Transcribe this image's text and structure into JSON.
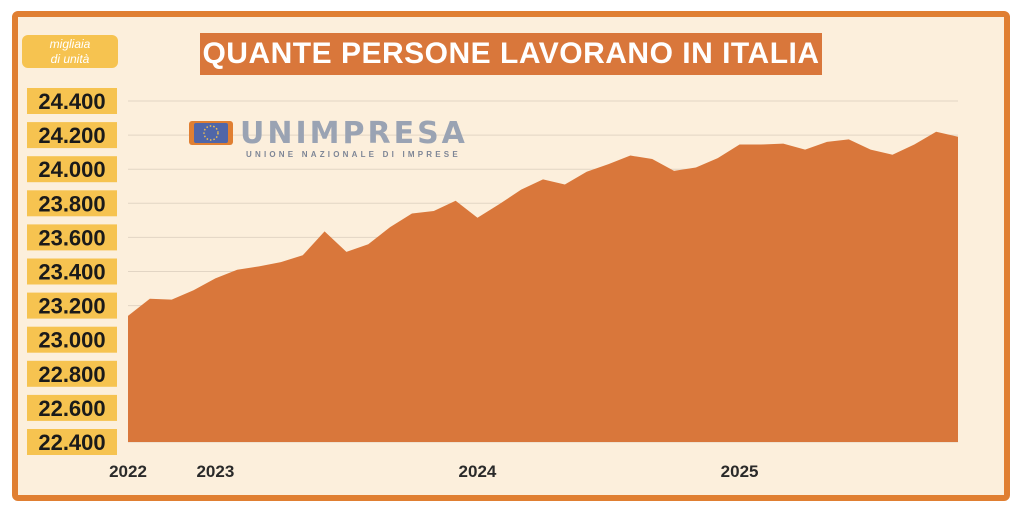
{
  "title": "QUANTE PERSONE LAVORANO IN ITALIA",
  "unit_line1": "migliaia",
  "unit_line2": "di unità",
  "logo": {
    "name": "UNIMPRESA",
    "subtitle": "UNIONE NAZIONALE DI IMPRESE"
  },
  "colors": {
    "frame": "#e07f32",
    "background": "#fcefdc",
    "area": "#d9773b",
    "title_bg": "#d9773b",
    "label_bg": "#f6c350",
    "grid": "#e2d5c4"
  },
  "chart_data": {
    "type": "area",
    "ylim": [
      22400,
      24400
    ],
    "y_ticks": [
      22400,
      22600,
      22800,
      23000,
      23200,
      23400,
      23600,
      23800,
      24000,
      24200,
      24400
    ],
    "y_tick_labels": [
      "22.400",
      "22.600",
      "22.800",
      "23.000",
      "23.200",
      "23.400",
      "23.600",
      "23.800",
      "24.000",
      "24.200",
      "24.400"
    ],
    "x_labels": [
      {
        "label": "2022",
        "index": 0
      },
      {
        "label": "2023",
        "index": 4
      },
      {
        "label": "2024",
        "index": 16
      },
      {
        "label": "2025",
        "index": 28
      }
    ],
    "grid": true,
    "values": [
      23140,
      23240,
      23235,
      23290,
      23360,
      23410,
      23430,
      23455,
      23495,
      23635,
      23515,
      23560,
      23660,
      23740,
      23755,
      23815,
      23715,
      23795,
      23880,
      23940,
      23910,
      23985,
      24030,
      24080,
      24060,
      23990,
      24010,
      24065,
      24145,
      24145,
      24150,
      24115,
      24160,
      24175,
      24115,
      24085,
      24145,
      24220,
      24190
    ]
  }
}
